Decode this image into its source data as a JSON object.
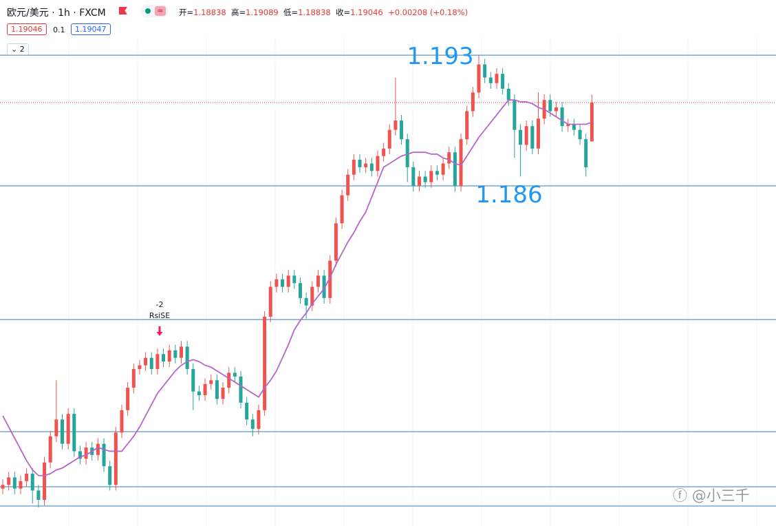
{
  "header": {
    "title": "欧元/美元 · 1h · FXCM",
    "ohlc": [
      {
        "label": "开=",
        "value": "1.18838"
      },
      {
        "label": "高=",
        "value": "1.19089"
      },
      {
        "label": "低=",
        "value": "1.18838"
      },
      {
        "label": "收=",
        "value": "1.19046"
      }
    ],
    "change": "+0.00208 (+0.18%)",
    "bid": "1.19046",
    "spread": "0.1",
    "ask": "1.19047",
    "indicators": "2"
  },
  "chart_data": {
    "type": "candlestick",
    "ylim": [
      1.1678,
      1.19595
    ],
    "up_color": "#ef5350",
    "down_color": "#26a69a",
    "open": [
      1.1698,
      1.17,
      1.1704,
      1.1698,
      1.1702,
      1.1706,
      1.1697,
      1.1692,
      1.1712,
      1.1726,
      1.1735,
      1.1722,
      1.1738,
      1.1718,
      1.1714,
      1.172,
      1.1716,
      1.1722,
      1.171,
      1.17,
      1.1728,
      1.174,
      1.1752,
      1.1762,
      1.1764,
      1.1768,
      1.1762,
      1.177,
      1.1766,
      1.1772,
      1.1768,
      1.1774,
      1.1762,
      1.175,
      1.1748,
      1.1754,
      1.1756,
      1.1746,
      1.1752,
      1.176,
      1.1758,
      1.1744,
      1.1735,
      1.173,
      1.174,
      1.179,
      1.1806,
      1.181,
      1.1806,
      1.1812,
      1.1808,
      1.18,
      1.1796,
      1.1806,
      1.1812,
      1.18,
      1.182,
      1.184,
      1.1855,
      1.1866,
      1.1874,
      1.187,
      1.1872,
      1.1868,
      1.1876,
      1.188,
      1.189,
      1.1895,
      1.1885,
      1.187,
      1.186,
      1.1865,
      1.1862,
      1.1868,
      1.1866,
      1.1872,
      1.1878,
      1.186,
      1.1885,
      1.19,
      1.191,
      1.1925,
      1.1918,
      1.1915,
      1.192,
      1.1912,
      1.1906,
      1.189,
      1.1882,
      1.1892,
      1.188,
      1.1896,
      1.1906,
      1.19,
      1.1902,
      1.1892,
      1.1893,
      1.189,
      1.1885,
      1.18838
    ],
    "high": [
      1.1703,
      1.1707,
      1.1707,
      1.1705,
      1.1709,
      1.1709,
      1.17,
      1.1715,
      1.1729,
      1.1756,
      1.1738,
      1.1741,
      1.1741,
      1.1721,
      1.1723,
      1.1723,
      1.1725,
      1.1725,
      1.1713,
      1.1731,
      1.1743,
      1.1755,
      1.1765,
      1.1767,
      1.1771,
      1.1771,
      1.1773,
      1.1773,
      1.1775,
      1.1775,
      1.1777,
      1.1777,
      1.1765,
      1.1753,
      1.1757,
      1.1759,
      1.1759,
      1.1755,
      1.1763,
      1.1763,
      1.1761,
      1.1747,
      1.1738,
      1.1743,
      1.1793,
      1.1809,
      1.1813,
      1.1813,
      1.1815,
      1.1815,
      1.1811,
      1.1803,
      1.1809,
      1.1815,
      1.1815,
      1.1823,
      1.1843,
      1.1858,
      1.1869,
      1.1877,
      1.1877,
      1.1875,
      1.1875,
      1.1879,
      1.1883,
      1.1893,
      1.1918,
      1.1898,
      1.1888,
      1.1873,
      1.1868,
      1.1868,
      1.1871,
      1.1871,
      1.1875,
      1.1881,
      1.1881,
      1.1888,
      1.1903,
      1.1913,
      1.193,
      1.1928,
      1.1921,
      1.1923,
      1.1923,
      1.1915,
      1.1909,
      1.1893,
      1.1895,
      1.1895,
      1.191,
      1.1909,
      1.1909,
      1.1905,
      1.1905,
      1.1896,
      1.1896,
      1.1893,
      1.1888,
      1.19089
    ],
    "low": [
      1.1695,
      1.1697,
      1.1695,
      1.1695,
      1.1699,
      1.169,
      1.1688,
      1.1689,
      1.1709,
      1.1723,
      1.1719,
      1.1719,
      1.1715,
      1.1711,
      1.1711,
      1.1713,
      1.1713,
      1.1707,
      1.1697,
      1.1697,
      1.1725,
      1.1737,
      1.1749,
      1.1759,
      1.1761,
      1.1759,
      1.1759,
      1.1763,
      1.1763,
      1.1765,
      1.1765,
      1.1759,
      1.174,
      1.1745,
      1.1745,
      1.1751,
      1.1743,
      1.1743,
      1.1749,
      1.1755,
      1.1741,
      1.1732,
      1.1726,
      1.1727,
      1.1737,
      1.1787,
      1.1803,
      1.1803,
      1.1803,
      1.1805,
      1.1797,
      1.1789,
      1.1793,
      1.1803,
      1.1797,
      1.1797,
      1.1817,
      1.1837,
      1.1852,
      1.1863,
      1.1867,
      1.1867,
      1.1865,
      1.1865,
      1.1873,
      1.1877,
      1.1887,
      1.1882,
      1.1862,
      1.1857,
      1.1857,
      1.1859,
      1.1859,
      1.1863,
      1.1863,
      1.1869,
      1.1857,
      1.1857,
      1.1882,
      1.1897,
      1.1907,
      1.1915,
      1.1912,
      1.1912,
      1.1909,
      1.1903,
      1.1875,
      1.1865,
      1.1879,
      1.1877,
      1.1877,
      1.1893,
      1.1897,
      1.1897,
      1.1889,
      1.1889,
      1.1887,
      1.1882,
      1.1865,
      1.18838
    ],
    "close": [
      1.17,
      1.1704,
      1.1698,
      1.1702,
      1.1706,
      1.1697,
      1.1692,
      1.1712,
      1.1726,
      1.1735,
      1.1722,
      1.1738,
      1.1718,
      1.1714,
      1.172,
      1.1716,
      1.1722,
      1.171,
      1.17,
      1.1728,
      1.174,
      1.1752,
      1.1762,
      1.1764,
      1.1768,
      1.1762,
      1.177,
      1.1766,
      1.1772,
      1.1768,
      1.1774,
      1.1762,
      1.175,
      1.1748,
      1.1754,
      1.1756,
      1.1746,
      1.1752,
      1.176,
      1.1758,
      1.1744,
      1.1735,
      1.173,
      1.174,
      1.179,
      1.1806,
      1.181,
      1.1806,
      1.1812,
      1.1808,
      1.18,
      1.1796,
      1.1806,
      1.1812,
      1.18,
      1.182,
      1.184,
      1.1855,
      1.1866,
      1.1874,
      1.187,
      1.1872,
      1.1868,
      1.1876,
      1.188,
      1.189,
      1.1895,
      1.1885,
      1.187,
      1.186,
      1.1865,
      1.1862,
      1.1868,
      1.1866,
      1.1872,
      1.1878,
      1.186,
      1.1885,
      1.19,
      1.191,
      1.1925,
      1.1918,
      1.1915,
      1.192,
      1.1912,
      1.1906,
      1.189,
      1.1882,
      1.1892,
      1.188,
      1.1896,
      1.1906,
      1.19,
      1.1902,
      1.1892,
      1.1893,
      1.189,
      1.1885,
      1.187,
      1.19046
    ],
    "ma": {
      "color": "#b565c8",
      "values": [
        1.1737,
        1.1731,
        1.1725,
        1.1719,
        1.1713,
        1.1708,
        1.1705,
        1.1705,
        1.1706,
        1.1708,
        1.1709,
        1.1711,
        1.1713,
        1.1715,
        1.1716,
        1.1718,
        1.172,
        1.1719,
        1.1718,
        1.1718,
        1.1718,
        1.1722,
        1.1726,
        1.1731,
        1.1737,
        1.1743,
        1.1749,
        1.1753,
        1.1757,
        1.1761,
        1.1764,
        1.1766,
        1.1767,
        1.1766,
        1.1764,
        1.1763,
        1.1761,
        1.1759,
        1.1757,
        1.1755,
        1.1753,
        1.1751,
        1.1749,
        1.1747,
        1.1752,
        1.1756,
        1.1761,
        1.1768,
        1.1775,
        1.1783,
        1.1788,
        1.1792,
        1.1797,
        1.1801,
        1.1805,
        1.1811,
        1.1818,
        1.1824,
        1.183,
        1.1835,
        1.1841,
        1.1846,
        1.1854,
        1.1862,
        1.187,
        1.1872,
        1.1874,
        1.1876,
        1.1877,
        1.1878,
        1.1878,
        1.1878,
        1.1877,
        1.1877,
        1.1875,
        1.1874,
        1.1872,
        1.1871,
        1.1876,
        1.1881,
        1.1886,
        1.189,
        1.1894,
        1.1898,
        1.1902,
        1.1906,
        1.1906,
        1.1905,
        1.1905,
        1.1904,
        1.1902,
        1.1901,
        1.1899,
        1.1897,
        1.1895,
        1.1893,
        1.1893,
        1.1893,
        1.1893,
        1.1894
      ]
    },
    "levels": {
      "color": "#2f7fb9",
      "values": [
        1.193,
        1.186,
        1.17885,
        1.17285,
        1.1699,
        1.16887
      ]
    },
    "level_label_color": "#2196f3",
    "last_line_color": "#e53935",
    "signal": {
      "value": "-2",
      "label": "RsiSE"
    }
  },
  "watermark": "@小三千"
}
